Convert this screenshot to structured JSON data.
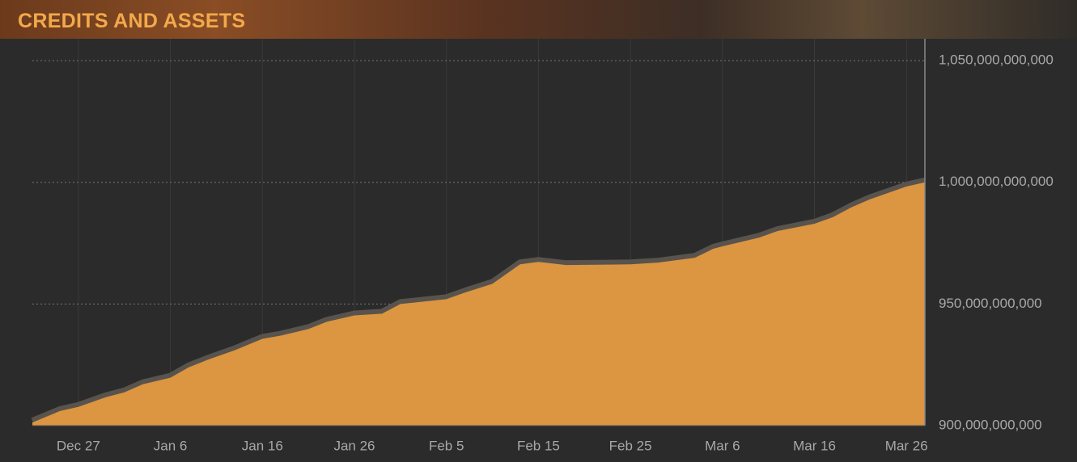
{
  "chart_data": {
    "type": "area",
    "title": "CREDITS AND ASSETS",
    "x": [
      -5,
      -2,
      0,
      3,
      5,
      7,
      10,
      12,
      14,
      17,
      20,
      22,
      25,
      27,
      30,
      33,
      35,
      40,
      42,
      45,
      48,
      50,
      53,
      60,
      63,
      67,
      69,
      70,
      74,
      76,
      80,
      82,
      84,
      86,
      90,
      92
    ],
    "values": [
      901300000000,
      906000000000,
      907700000000,
      911700000000,
      913700000000,
      917000000000,
      919700000000,
      924000000000,
      927000000000,
      931000000000,
      935700000000,
      937000000000,
      939700000000,
      942700000000,
      945300000000,
      946000000000,
      950000000000,
      952000000000,
      954700000000,
      958300000000,
      966300000000,
      967300000000,
      966000000000,
      966300000000,
      967000000000,
      969000000000,
      972700000000,
      973700000000,
      977300000000,
      980000000000,
      983000000000,
      985700000000,
      989700000000,
      993000000000,
      998300000000,
      1000000000000
    ],
    "color": "#dc9540",
    "line_color": "#58534d",
    "xlim": [
      -5,
      92
    ],
    "xticks": [
      {
        "value": 0,
        "label": "Dec 27"
      },
      {
        "value": 10,
        "label": "Jan 6"
      },
      {
        "value": 20,
        "label": "Jan 16"
      },
      {
        "value": 30,
        "label": "Jan 26"
      },
      {
        "value": 40,
        "label": "Feb 5"
      },
      {
        "value": 50,
        "label": "Feb 15"
      },
      {
        "value": 60,
        "label": "Feb 25"
      },
      {
        "value": 70,
        "label": "Mar 6"
      },
      {
        "value": 80,
        "label": "Mar 16"
      },
      {
        "value": 90,
        "label": "Mar 26"
      }
    ],
    "ylim": [
      900000000000,
      1059000000000
    ],
    "yticks": [
      {
        "value": 900000000000,
        "label": "900,000,000,000"
      },
      {
        "value": 950000000000,
        "label": "950,000,000,000"
      },
      {
        "value": 1000000000000,
        "label": "1,000,000,000,000"
      },
      {
        "value": 1050000000000,
        "label": "1,050,000,000,000"
      }
    ],
    "grid": true
  }
}
